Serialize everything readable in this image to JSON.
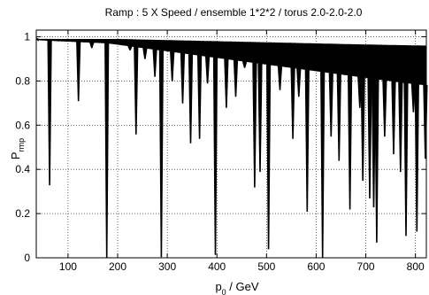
{
  "chart_data": {
    "type": "line",
    "title": "Ramp : 5 X Speed / ensemble 1*2*2 / torus 2.0-2.0-2.0",
    "xlabel": {
      "main": "p",
      "sub": "0",
      "rest": " / GeV"
    },
    "ylabel": {
      "main": "P",
      "sub": "rmp"
    },
    "xlim": [
      36,
      822
    ],
    "ylim": [
      0,
      1.03
    ],
    "xticks": [
      100,
      200,
      300,
      400,
      500,
      600,
      700,
      800
    ],
    "yticks": [
      0,
      0.2,
      0.4,
      0.6,
      0.8,
      1
    ],
    "ytick_labels": [
      "0",
      "0.2",
      "0.4",
      "0.6",
      "0.8",
      "1"
    ],
    "grid": true,
    "legend": "none",
    "line_color": "#000000",
    "series": [
      {
        "envelope_upper": [
          [
            36,
            0.99
          ],
          [
            100,
            0.99
          ],
          [
            200,
            0.99
          ],
          [
            300,
            0.985
          ],
          [
            400,
            0.98
          ],
          [
            500,
            0.975
          ],
          [
            600,
            0.97
          ],
          [
            700,
            0.965
          ],
          [
            822,
            0.96
          ]
        ],
        "envelope_lower": [
          [
            36,
            0.985
          ],
          [
            80,
            0.98
          ],
          [
            130,
            0.975
          ],
          [
            180,
            0.97
          ],
          [
            230,
            0.955
          ],
          [
            280,
            0.94
          ],
          [
            330,
            0.925
          ],
          [
            380,
            0.91
          ],
          [
            430,
            0.895
          ],
          [
            480,
            0.88
          ],
          [
            530,
            0.865
          ],
          [
            580,
            0.85
          ],
          [
            630,
            0.835
          ],
          [
            680,
            0.82
          ],
          [
            730,
            0.805
          ],
          [
            780,
            0.79
          ],
          [
            822,
            0.78
          ]
        ],
        "resonance_dips": [
          [
            63,
            0.33
          ],
          [
            121,
            0.71
          ],
          [
            148,
            0.95
          ],
          [
            178,
            0.0
          ],
          [
            225,
            0.94
          ],
          [
            237,
            0.56
          ],
          [
            255,
            0.9
          ],
          [
            275,
            0.82
          ],
          [
            288,
            0.005
          ],
          [
            310,
            0.8
          ],
          [
            331,
            0.7
          ],
          [
            347,
            0.52
          ],
          [
            365,
            0.54
          ],
          [
            381,
            0.79
          ],
          [
            397,
            0.015
          ],
          [
            419,
            0.68
          ],
          [
            438,
            0.73
          ],
          [
            456,
            0.86
          ],
          [
            476,
            0.32
          ],
          [
            487,
            0.39
          ],
          [
            504,
            0.04
          ],
          [
            527,
            0.76
          ],
          [
            553,
            0.54
          ],
          [
            565,
            0.73
          ],
          [
            582,
            0.21
          ],
          [
            613,
            0.0
          ],
          [
            630,
            0.55
          ],
          [
            646,
            0.44
          ],
          [
            668,
            0.22
          ],
          [
            688,
            0.68
          ],
          [
            694,
            0.35
          ],
          [
            708,
            0.27
          ],
          [
            716,
            0.23
          ],
          [
            722,
            0.07
          ],
          [
            738,
            0.55
          ],
          [
            756,
            0.47
          ],
          [
            770,
            0.39
          ],
          [
            781,
            0.1
          ],
          [
            796,
            0.66
          ],
          [
            803,
            0.12
          ],
          [
            820,
            0.45
          ]
        ]
      }
    ]
  }
}
